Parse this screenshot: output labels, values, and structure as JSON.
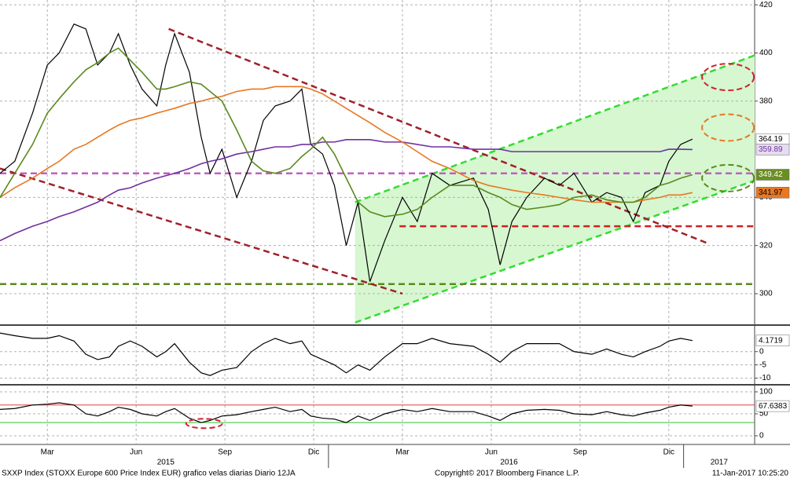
{
  "x": [
    0.9,
    1.4,
    2.0,
    2.5,
    2.9,
    3.4,
    3.8,
    4.2,
    4.6,
    4.9,
    5.3,
    5.7,
    6.2,
    6.5,
    6.8,
    7.3,
    7.7,
    8.0,
    8.4,
    8.9,
    9.4,
    9.8,
    10.2,
    10.7,
    11.1,
    11.4,
    11.8,
    12.2,
    12.6,
    13.0,
    13.4,
    13.9,
    14.5,
    15.0,
    15.5,
    16.1,
    16.9,
    17.4,
    17.8,
    18.2,
    18.7,
    19.3,
    19.8,
    20.3,
    20.9,
    21.4,
    21.9,
    22.3,
    22.7,
    23.2,
    23.5,
    23.9,
    24.3
  ],
  "xlim": [
    0.9,
    26.4
  ],
  "xticks": [
    {
      "value": 2.5,
      "label": "Mar"
    },
    {
      "value": 5.5,
      "label": "Jun"
    },
    {
      "value": 8.5,
      "label": "Sep"
    },
    {
      "value": 11.5,
      "label": "Dic"
    },
    {
      "value": 14.5,
      "label": "Mar"
    },
    {
      "value": 17.5,
      "label": "Jun"
    },
    {
      "value": 20.5,
      "label": "Sep"
    },
    {
      "value": 23.5,
      "label": "Dic"
    }
  ],
  "year_ticks": [
    {
      "value": 6.5,
      "label": "2015"
    },
    {
      "value": 18.1,
      "label": "2016"
    },
    {
      "value": 25.2,
      "label": "2017"
    }
  ],
  "year_starts": [
    12,
    24
  ],
  "chart_data": [
    {
      "type": "line",
      "ylim": [
        287.6,
        422
      ],
      "yticks": [
        300,
        320,
        340,
        380,
        400,
        420
      ],
      "grid": true,
      "series": [
        {
          "color": "#000000",
          "values": [
            350,
            355,
            375,
            395,
            400,
            412,
            410,
            395,
            400,
            408,
            395,
            385,
            378,
            395,
            408,
            392,
            365,
            350,
            360,
            340,
            355,
            372,
            378,
            380,
            385,
            362,
            358,
            345,
            320,
            338,
            305,
            322,
            340,
            330,
            350,
            345,
            348,
            335,
            312,
            330,
            340,
            348,
            345,
            350,
            338,
            342,
            340,
            330,
            342,
            345,
            355,
            362,
            364.19
          ],
          "label_bg": "#ffffff",
          "label_fg": "#000000"
        },
        {
          "color": "#7030a0",
          "values": [
            322,
            325,
            328,
            330,
            332,
            334,
            336,
            338,
            341,
            343,
            344,
            346,
            348,
            349,
            350,
            352,
            354,
            355,
            356,
            358,
            359,
            360,
            361,
            361,
            362,
            362,
            363,
            363,
            364,
            364,
            364,
            363,
            363,
            362,
            361,
            361,
            360,
            360,
            360,
            359,
            359,
            359,
            359,
            359,
            359,
            359,
            359,
            359,
            359,
            359,
            360,
            360,
            359.89
          ],
          "label_bg": "#e6dcf0",
          "label_fg": "#7030a0"
        },
        {
          "color": "#e87722",
          "values": [
            340,
            344,
            348,
            352,
            355,
            360,
            362,
            365,
            368,
            370,
            372,
            373,
            375,
            376,
            377,
            379,
            380,
            381,
            382,
            384,
            385,
            385,
            386,
            386,
            386,
            385,
            383,
            380,
            377,
            374,
            371,
            367,
            363,
            359,
            355,
            352,
            347,
            345,
            344,
            343,
            342,
            341,
            340,
            339,
            338,
            338,
            338,
            338,
            339,
            340,
            341,
            341,
            341.97
          ],
          "label_bg": "#e87722",
          "label_fg": "#000000"
        },
        {
          "color": "#5a8a1e",
          "values": [
            340,
            350,
            362,
            375,
            381,
            388,
            393,
            396,
            400,
            402,
            397,
            392,
            385,
            385,
            386,
            388,
            387,
            384,
            380,
            368,
            355,
            351,
            350,
            352,
            357,
            360,
            365,
            358,
            348,
            338,
            334,
            332,
            333,
            335,
            340,
            345,
            345,
            342,
            340,
            337,
            335,
            336,
            337,
            340,
            341,
            339,
            338,
            338,
            340,
            345,
            346,
            348,
            349.42
          ],
          "label_bg": "#6b8e23",
          "label_fg": "#ffffff"
        }
      ],
      "hlines": [
        {
          "y": 350,
          "color": "#c060c0"
        },
        {
          "y": 304,
          "color": "#5a8a1e"
        },
        {
          "y": 328,
          "x0": 14.4,
          "color": "#d02020"
        }
      ],
      "trendlines": [
        {
          "x": [
            6.6,
            24.8
          ],
          "y": [
            410,
            321
          ],
          "color": "#a0202a"
        },
        {
          "x": [
            0.9,
            14.5
          ],
          "y": [
            352,
            300
          ],
          "color": "#a0202a"
        }
      ],
      "channel": {
        "x": [
          12.9,
          26.4
        ],
        "upper": [
          338,
          399
        ],
        "lower": [
          288,
          347
        ],
        "color": "#32dd32",
        "fill": "#d6f7d0"
      },
      "ellipses": [
        {
          "x": 25.5,
          "y": 390,
          "color": "#d02030"
        },
        {
          "x": 25.5,
          "y": 369,
          "color": "#e87722"
        },
        {
          "x": 25.5,
          "y": 348,
          "color": "#5a8a1e"
        }
      ]
    },
    {
      "type": "line",
      "ylim": [
        -11.9,
        9.4
      ],
      "yticks": [
        0,
        -5,
        -10
      ],
      "grid": true,
      "series": [
        {
          "color": "#000000",
          "values": [
            7,
            6,
            5,
            5,
            6,
            4,
            -1,
            -3,
            -2,
            2,
            4,
            2,
            -2,
            0,
            3,
            -4,
            -8,
            -9,
            -7,
            -6,
            0,
            3,
            5,
            3,
            4,
            -1,
            -3,
            -5,
            -8,
            -5,
            -7,
            -2,
            3,
            3,
            5,
            3,
            2,
            -1,
            -4,
            0,
            3,
            3,
            3,
            0,
            -1,
            1,
            -1,
            -2,
            0,
            2,
            4,
            5,
            4.1719
          ],
          "label_bg": "#ffffff",
          "label_fg": "#000000"
        }
      ]
    },
    {
      "type": "line",
      "ylim": [
        -17.9,
        112.5
      ],
      "yticks": [
        100,
        50,
        0
      ],
      "grid": true,
      "series": [
        {
          "color": "#000000",
          "values": [
            60,
            62,
            70,
            72,
            75,
            70,
            50,
            45,
            55,
            65,
            60,
            50,
            45,
            55,
            62,
            40,
            30,
            35,
            45,
            48,
            55,
            60,
            65,
            55,
            60,
            45,
            40,
            38,
            30,
            45,
            35,
            50,
            60,
            55,
            62,
            55,
            55,
            45,
            35,
            50,
            58,
            60,
            58,
            50,
            48,
            55,
            48,
            45,
            52,
            58,
            65,
            70,
            67.6383
          ],
          "label_bg": "#ffffff",
          "label_fg": "#000000"
        }
      ],
      "hlines": [
        {
          "y": 70,
          "color": "#e04040"
        },
        {
          "y": 30,
          "color": "#30c030"
        }
      ],
      "ellipses": [
        {
          "x": 7.8,
          "y": 28,
          "color": "#d02030"
        }
      ]
    }
  ],
  "footer": {
    "left": "SXXP Index (STOXX Europe 600 Price Index EUR) grafico velas diarias  Diario 12JA",
    "center": "Copyright© 2017 Bloomberg Finance L.P.",
    "right": "11-Jan-2017 10:25:20"
  }
}
